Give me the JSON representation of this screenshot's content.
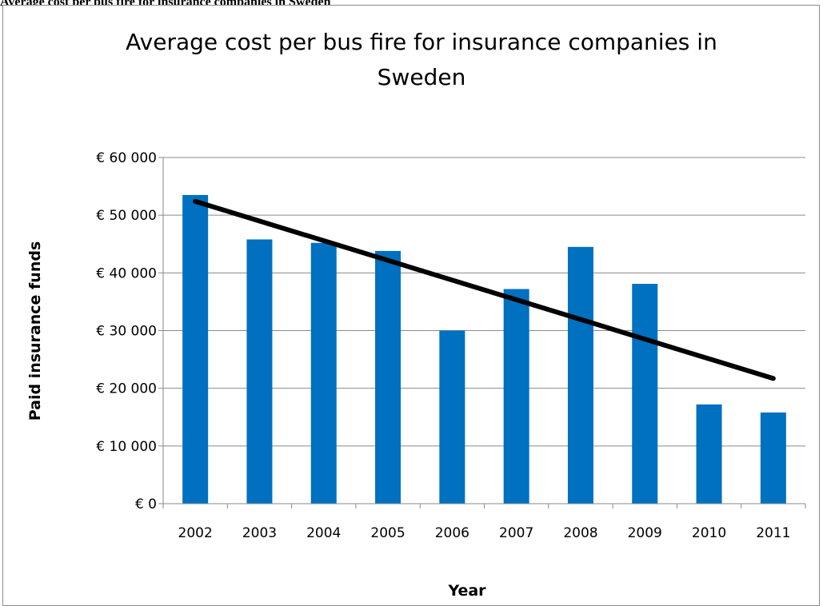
{
  "caption": "Average cost per bus fire for insurance companies in Sweden",
  "chart_data": {
    "type": "bar",
    "title_lines": [
      "Average cost per bus fire for insurance companies in",
      "Sweden"
    ],
    "xlabel": "Year",
    "ylabel": "Paid insurance funds",
    "categories": [
      "2002",
      "2003",
      "2004",
      "2005",
      "2006",
      "2007",
      "2008",
      "2009",
      "2010",
      "2011"
    ],
    "values": [
      53500,
      45800,
      45200,
      43800,
      30000,
      37200,
      44500,
      38100,
      17200,
      15800
    ],
    "ylim": [
      0,
      60000
    ],
    "ytick_values": [
      0,
      10000,
      20000,
      30000,
      40000,
      50000,
      60000
    ],
    "ytick_labels": [
      "€ 0",
      "€ 10 000",
      "€ 20 000",
      "€ 30 000",
      "€ 40 000",
      "€ 50 000",
      "€ 60 000"
    ],
    "trendline": {
      "type": "linear",
      "start": [
        "2002",
        52400
      ],
      "end": [
        "2011",
        21700
      ]
    },
    "grid": true,
    "bar_color": "#0070C0",
    "trend_color": "#000000"
  }
}
